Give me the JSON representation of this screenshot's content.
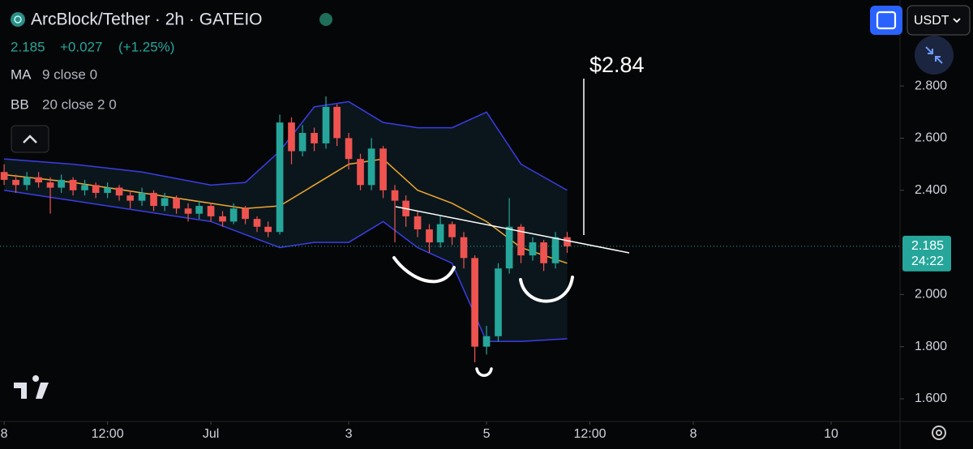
{
  "chart_data": {
    "type": "candlestick",
    "header": {
      "symbol": "ArcBlock/Tether · 2h · GATEIO",
      "price": "2.185",
      "change": "+0.027",
      "change_pct": "(+1.25%)",
      "ma_name": "MA",
      "ma_params": "9 close 0",
      "bb_name": "BB",
      "bb_params": "20 close 2 0",
      "currency": "USDT"
    },
    "annotation": "$2.84",
    "last_price": {
      "value": 2.185,
      "label": "2.185",
      "countdown": "24:22"
    },
    "up_color": "#26a69a",
    "down_color": "#ef5350",
    "x": [
      0,
      0.17,
      0.33,
      0.5,
      0.67,
      0.83,
      1,
      1.17,
      1.33,
      1.5,
      1.67,
      1.83,
      2,
      2.17,
      2.33,
      2.5,
      2.67,
      2.83,
      3,
      3.17,
      3.33,
      3.5,
      3.67,
      3.83,
      4,
      4.17,
      4.33,
      4.5,
      4.67,
      4.83,
      5,
      5.17,
      5.33,
      5.5,
      5.67,
      5.83,
      6,
      6.17,
      6.33,
      6.5,
      6.67,
      6.83,
      7,
      7.17,
      7.33,
      7.5,
      7.67,
      7.83,
      8,
      8.17
    ],
    "open": [
      2.47,
      2.44,
      2.42,
      2.45,
      2.43,
      2.41,
      2.44,
      2.4,
      2.42,
      2.39,
      2.41,
      2.38,
      2.36,
      2.39,
      2.34,
      2.37,
      2.33,
      2.31,
      2.34,
      2.3,
      2.28,
      2.33,
      2.29,
      2.26,
      2.24,
      2.66,
      2.55,
      2.62,
      2.58,
      2.72,
      2.6,
      2.52,
      2.42,
      2.56,
      2.4,
      2.36,
      2.3,
      2.25,
      2.2,
      2.27,
      2.22,
      2.14,
      1.8,
      1.84,
      2.1,
      2.26,
      2.15,
      2.2,
      2.12,
      2.22
    ],
    "high": [
      2.5,
      2.46,
      2.47,
      2.47,
      2.45,
      2.46,
      2.45,
      2.44,
      2.43,
      2.43,
      2.42,
      2.4,
      2.41,
      2.4,
      2.39,
      2.38,
      2.35,
      2.36,
      2.35,
      2.32,
      2.35,
      2.34,
      2.3,
      2.28,
      2.69,
      2.68,
      2.65,
      2.64,
      2.76,
      2.73,
      2.62,
      2.54,
      2.6,
      2.57,
      2.42,
      2.38,
      2.32,
      2.27,
      2.3,
      2.28,
      2.24,
      2.15,
      1.88,
      2.12,
      2.37,
      2.27,
      2.22,
      2.21,
      2.24,
      2.24
    ],
    "low": [
      2.42,
      2.39,
      2.4,
      2.41,
      2.31,
      2.39,
      2.38,
      2.38,
      2.37,
      2.37,
      2.36,
      2.33,
      2.34,
      2.32,
      2.32,
      2.31,
      2.28,
      2.29,
      2.28,
      2.26,
      2.27,
      2.27,
      2.24,
      2.22,
      2.23,
      2.5,
      2.53,
      2.55,
      2.56,
      2.57,
      2.48,
      2.4,
      2.4,
      2.37,
      2.2,
      2.26,
      2.22,
      2.16,
      2.18,
      2.19,
      2.1,
      1.74,
      1.77,
      1.82,
      2.08,
      2.12,
      2.13,
      2.09,
      2.1,
      2.16
    ],
    "close": [
      2.44,
      2.42,
      2.45,
      2.43,
      2.41,
      2.44,
      2.4,
      2.42,
      2.39,
      2.41,
      2.38,
      2.36,
      2.39,
      2.34,
      2.37,
      2.33,
      2.31,
      2.34,
      2.3,
      2.28,
      2.33,
      2.29,
      2.26,
      2.24,
      2.66,
      2.55,
      2.62,
      2.58,
      2.72,
      2.6,
      2.52,
      2.42,
      2.56,
      2.4,
      2.36,
      2.3,
      2.25,
      2.2,
      2.27,
      2.22,
      2.14,
      1.8,
      1.84,
      2.1,
      2.26,
      2.15,
      2.2,
      2.12,
      2.22,
      2.185
    ],
    "bands": {
      "x": [
        0,
        1,
        2,
        3,
        3.5,
        4,
        4.5,
        5,
        5.5,
        6,
        6.5,
        7,
        7.5,
        8.17
      ],
      "upper": [
        2.52,
        2.5,
        2.47,
        2.42,
        2.43,
        2.55,
        2.72,
        2.74,
        2.66,
        2.64,
        2.64,
        2.7,
        2.5,
        2.4
      ],
      "lower": [
        2.4,
        2.36,
        2.32,
        2.28,
        2.23,
        2.18,
        2.2,
        2.2,
        2.28,
        2.18,
        2.12,
        1.82,
        1.82,
        1.83
      ],
      "basis": [
        2.46,
        2.43,
        2.39,
        2.35,
        2.33,
        2.34,
        2.42,
        2.5,
        2.52,
        2.4,
        2.35,
        2.28,
        2.18,
        2.12
      ],
      "band_color": "#3a3ee6",
      "basis_color": "#f0a830"
    },
    "xlim": [
      -0.06,
      13.0
    ],
    "xticks": [
      {
        "value": 0,
        "label": "8"
      },
      {
        "value": 1.5,
        "label": "12:00"
      },
      {
        "value": 3,
        "label": "Jul"
      },
      {
        "value": 5,
        "label": "3"
      },
      {
        "value": 7,
        "label": "5"
      },
      {
        "value": 8.5,
        "label": "12:00"
      },
      {
        "value": 10,
        "label": "8"
      },
      {
        "value": 12,
        "label": "10"
      }
    ],
    "ylim": [
      1.513,
      3.13
    ],
    "yticks": [
      {
        "value": 1.6,
        "label": "1.600"
      },
      {
        "value": 1.8,
        "label": "1.800"
      },
      {
        "value": 2.0,
        "label": "2.000"
      },
      {
        "value": 2.4,
        "label": "2.400"
      },
      {
        "value": 2.6,
        "label": "2.600"
      },
      {
        "value": 2.8,
        "label": "2.800"
      }
    ]
  }
}
